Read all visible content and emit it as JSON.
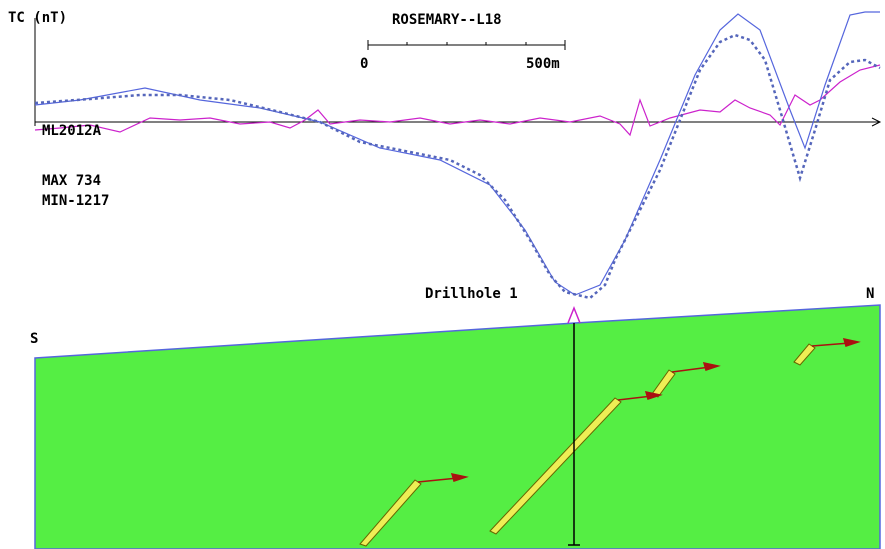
{
  "axis_label": "TC (nT)",
  "title": "ROSEMARY--L18",
  "scale": {
    "start": "0",
    "end": "500m"
  },
  "line_name": "ML2012A",
  "max": "MAX 734",
  "min": "MIN-1217",
  "drillhole": "Drillhole 1",
  "north": "N",
  "south": "S"
}
